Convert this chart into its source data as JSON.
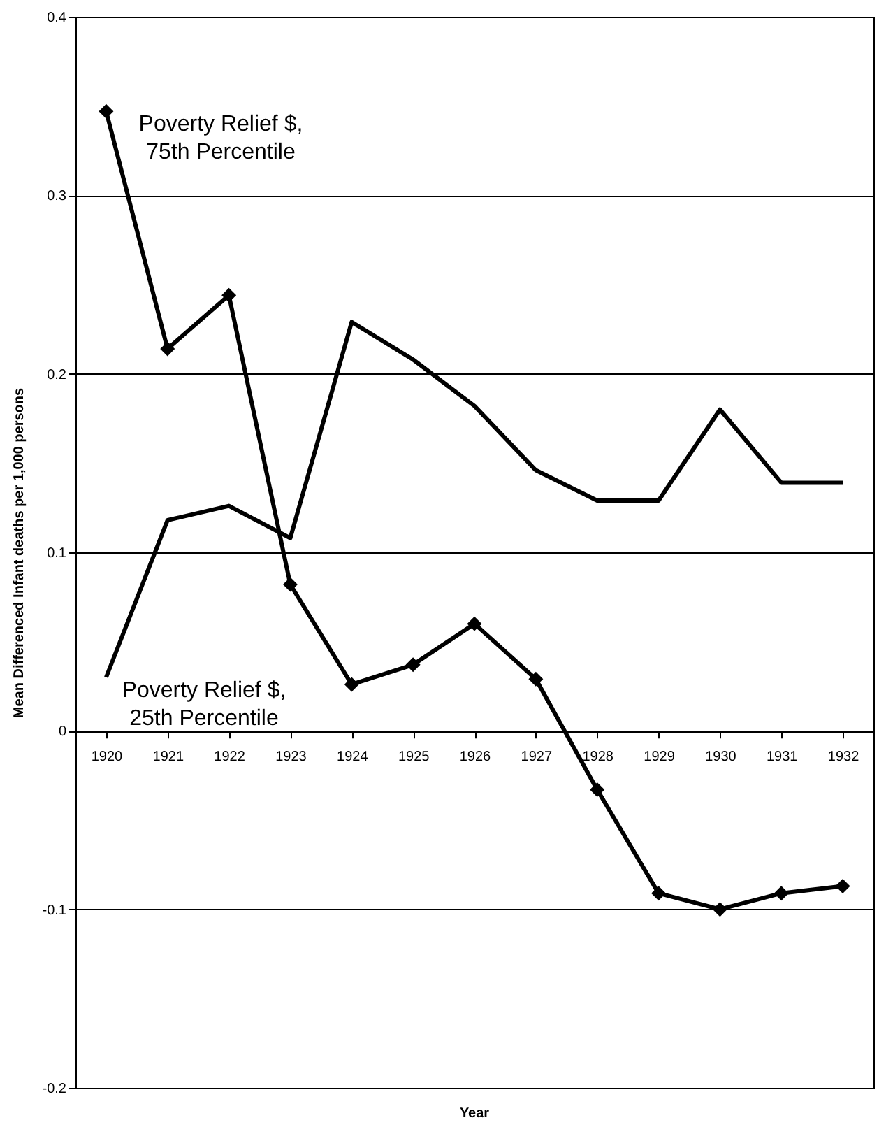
{
  "chart_data": {
    "type": "line",
    "categories": [
      "1920",
      "1921",
      "1922",
      "1923",
      "1924",
      "1925",
      "1926",
      "1927",
      "1928",
      "1929",
      "1930",
      "1931",
      "1932"
    ],
    "series": [
      {
        "name": "Poverty Relief $, 75th Percentile",
        "color": "#000000",
        "marker": "diamond",
        "values": [
          0.347,
          0.214,
          0.244,
          0.082,
          0.026,
          0.037,
          0.06,
          0.029,
          -0.033,
          -0.091,
          -0.1,
          -0.091,
          -0.087
        ]
      },
      {
        "name": "Poverty Relief $, 25th Percentile",
        "color": "#000000",
        "marker": "none",
        "values": [
          0.03,
          0.118,
          0.126,
          0.108,
          0.229,
          0.208,
          0.182,
          0.146,
          0.129,
          0.129,
          0.18,
          0.139,
          0.139
        ]
      }
    ],
    "xlabel": "Year",
    "ylabel": "Mean Differenced Infant deaths per 1,000 persons",
    "ylim": [
      -0.2,
      0.4
    ],
    "yticks": [
      -0.2,
      -0.1,
      0,
      0.1,
      0.2,
      0.3,
      0.4
    ],
    "grid": "y",
    "line_style": "solid"
  }
}
